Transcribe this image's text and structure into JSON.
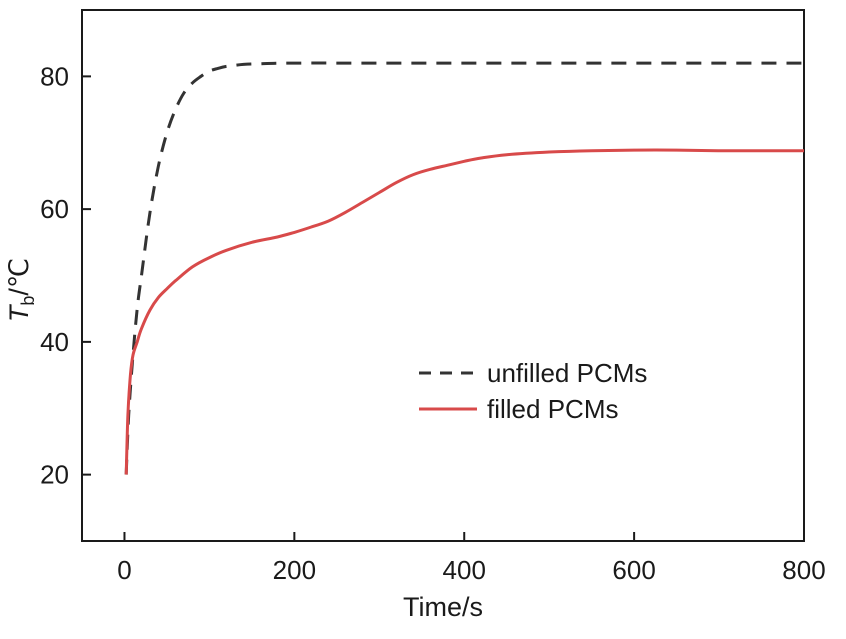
{
  "chart_data": {
    "type": "line",
    "xlabel": "Time/s",
    "ylabel_symbol": "T",
    "ylabel_subscript": "b",
    "ylabel_unit": "/℃",
    "xlim": [
      -50,
      800
    ],
    "ylim": [
      10,
      90
    ],
    "xticks": [
      0,
      200,
      400,
      600,
      800
    ],
    "yticks": [
      20,
      40,
      60,
      80
    ],
    "grid": false,
    "legend_position": "center-right",
    "series": [
      {
        "name": "unfilled PCMs",
        "color": "#333333",
        "style": "dashed",
        "x": [
          2,
          5,
          10,
          15,
          20,
          30,
          40,
          50,
          60,
          70,
          80,
          90,
          100,
          110,
          120,
          140,
          160,
          200,
          300,
          400,
          500,
          600,
          700,
          800
        ],
        "y": [
          20,
          29,
          38,
          45,
          50,
          59.5,
          66.5,
          71.5,
          75,
          77.5,
          79,
          80,
          80.8,
          81.2,
          81.5,
          81.8,
          81.9,
          82,
          82,
          82,
          82,
          82,
          82,
          82
        ]
      },
      {
        "name": "filled PCMs",
        "color": "#d84a4a",
        "style": "solid",
        "x": [
          2,
          4,
          7,
          10,
          15,
          20,
          30,
          40,
          50,
          60,
          80,
          100,
          120,
          150,
          180,
          200,
          220,
          240,
          260,
          280,
          300,
          320,
          340,
          360,
          380,
          400,
          420,
          450,
          500,
          550,
          600,
          650,
          700,
          750,
          800
        ],
        "y": [
          20,
          29,
          35,
          38,
          40,
          42,
          44.8,
          46.7,
          48,
          49.2,
          51.3,
          52.7,
          53.8,
          55,
          55.8,
          56.5,
          57.3,
          58.2,
          59.5,
          61,
          62.5,
          64,
          65.2,
          66,
          66.6,
          67.2,
          67.7,
          68.2,
          68.6,
          68.8,
          68.9,
          68.9,
          68.8,
          68.8,
          68.8
        ]
      }
    ]
  }
}
